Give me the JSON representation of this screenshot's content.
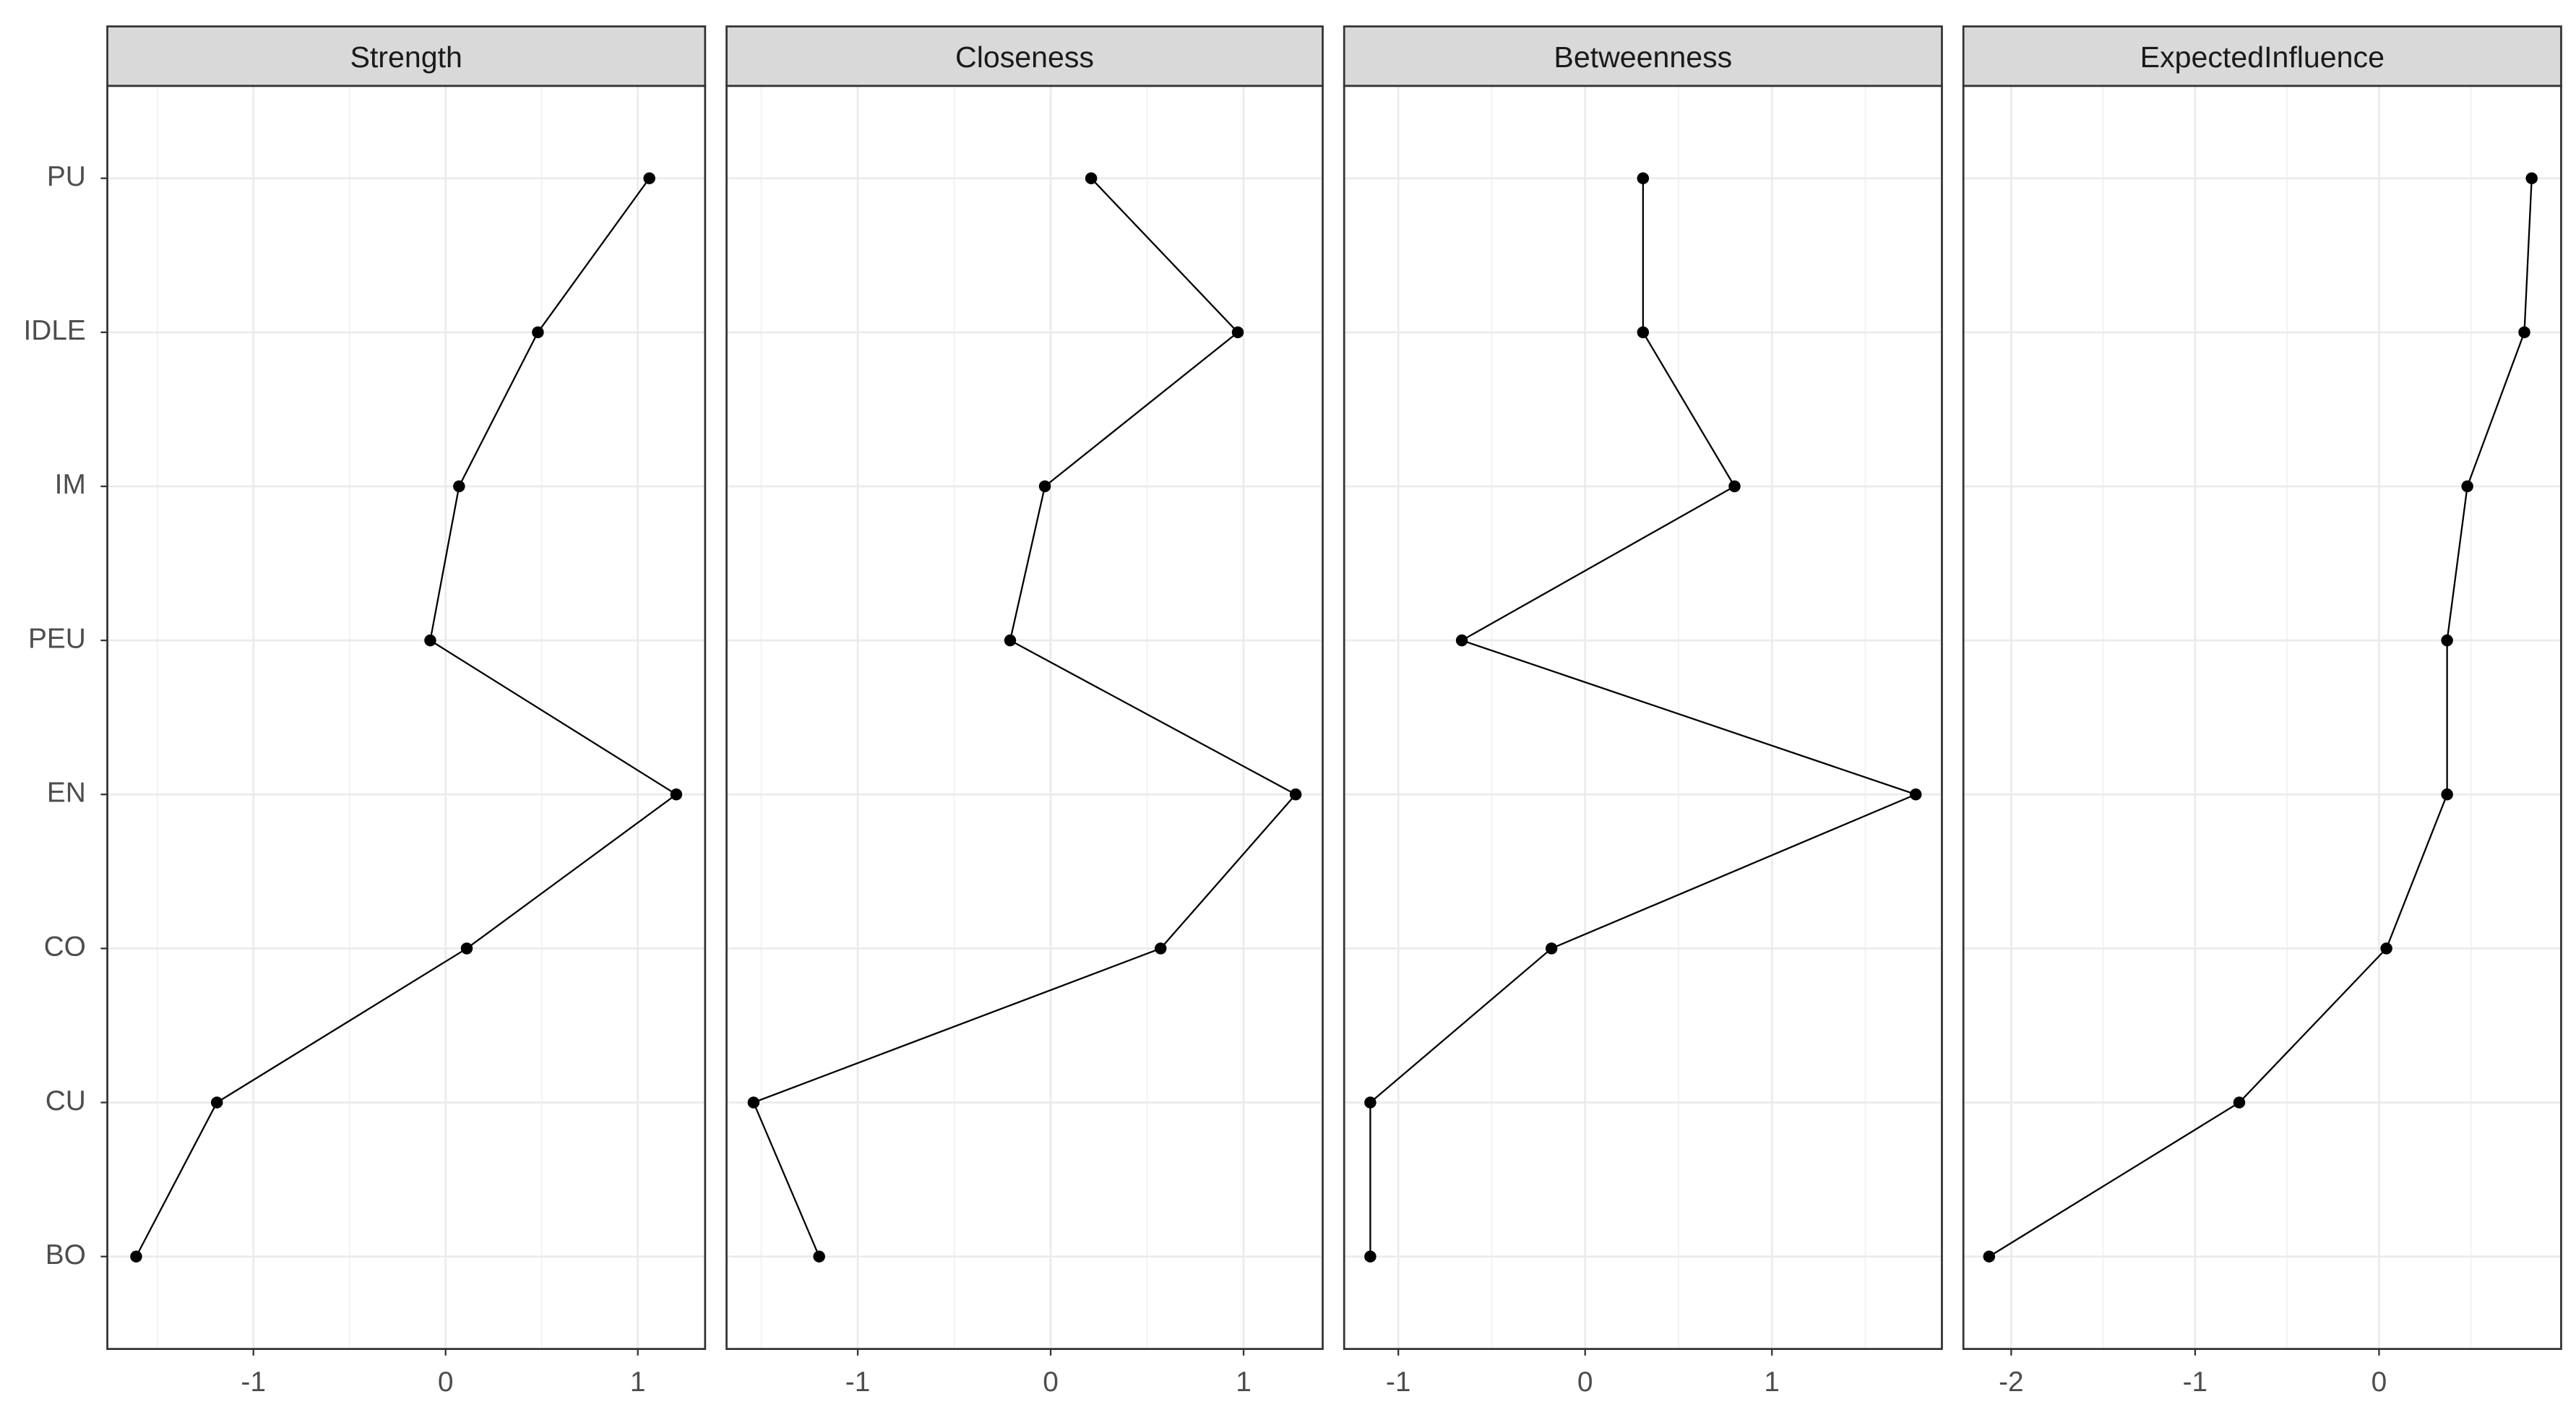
{
  "chart_data": {
    "type": "line",
    "categories": [
      "PU",
      "IDLE",
      "IM",
      "PEU",
      "EN",
      "CO",
      "CU",
      "BO"
    ],
    "color": "#000000",
    "grid": true,
    "series": [
      {
        "name": "Strength",
        "values": [
          1.06,
          0.48,
          0.07,
          -0.08,
          1.2,
          0.11,
          -1.19,
          -1.61
        ],
        "xlim": [
          -1.76,
          1.35
        ],
        "xticks": [
          -1,
          0,
          1
        ]
      },
      {
        "name": "Closeness",
        "values": [
          0.21,
          0.97,
          -0.03,
          -0.21,
          1.27,
          0.57,
          -1.54,
          -1.2
        ],
        "xlim": [
          -1.68,
          1.41
        ],
        "xticks": [
          -1,
          0,
          1
        ]
      },
      {
        "name": "Betweenness",
        "values": [
          0.31,
          0.31,
          0.8,
          -0.66,
          1.77,
          -0.18,
          -1.15,
          -1.15
        ],
        "xlim": [
          -1.29,
          1.91
        ],
        "xticks": [
          -1,
          0,
          1
        ]
      },
      {
        "name": "ExpectedInfluence",
        "values": [
          0.83,
          0.79,
          0.48,
          0.37,
          0.37,
          0.04,
          -0.76,
          -2.12
        ],
        "xlim": [
          -2.26,
          0.99
        ],
        "xticks": [
          -2,
          -1,
          0
        ]
      }
    ]
  }
}
